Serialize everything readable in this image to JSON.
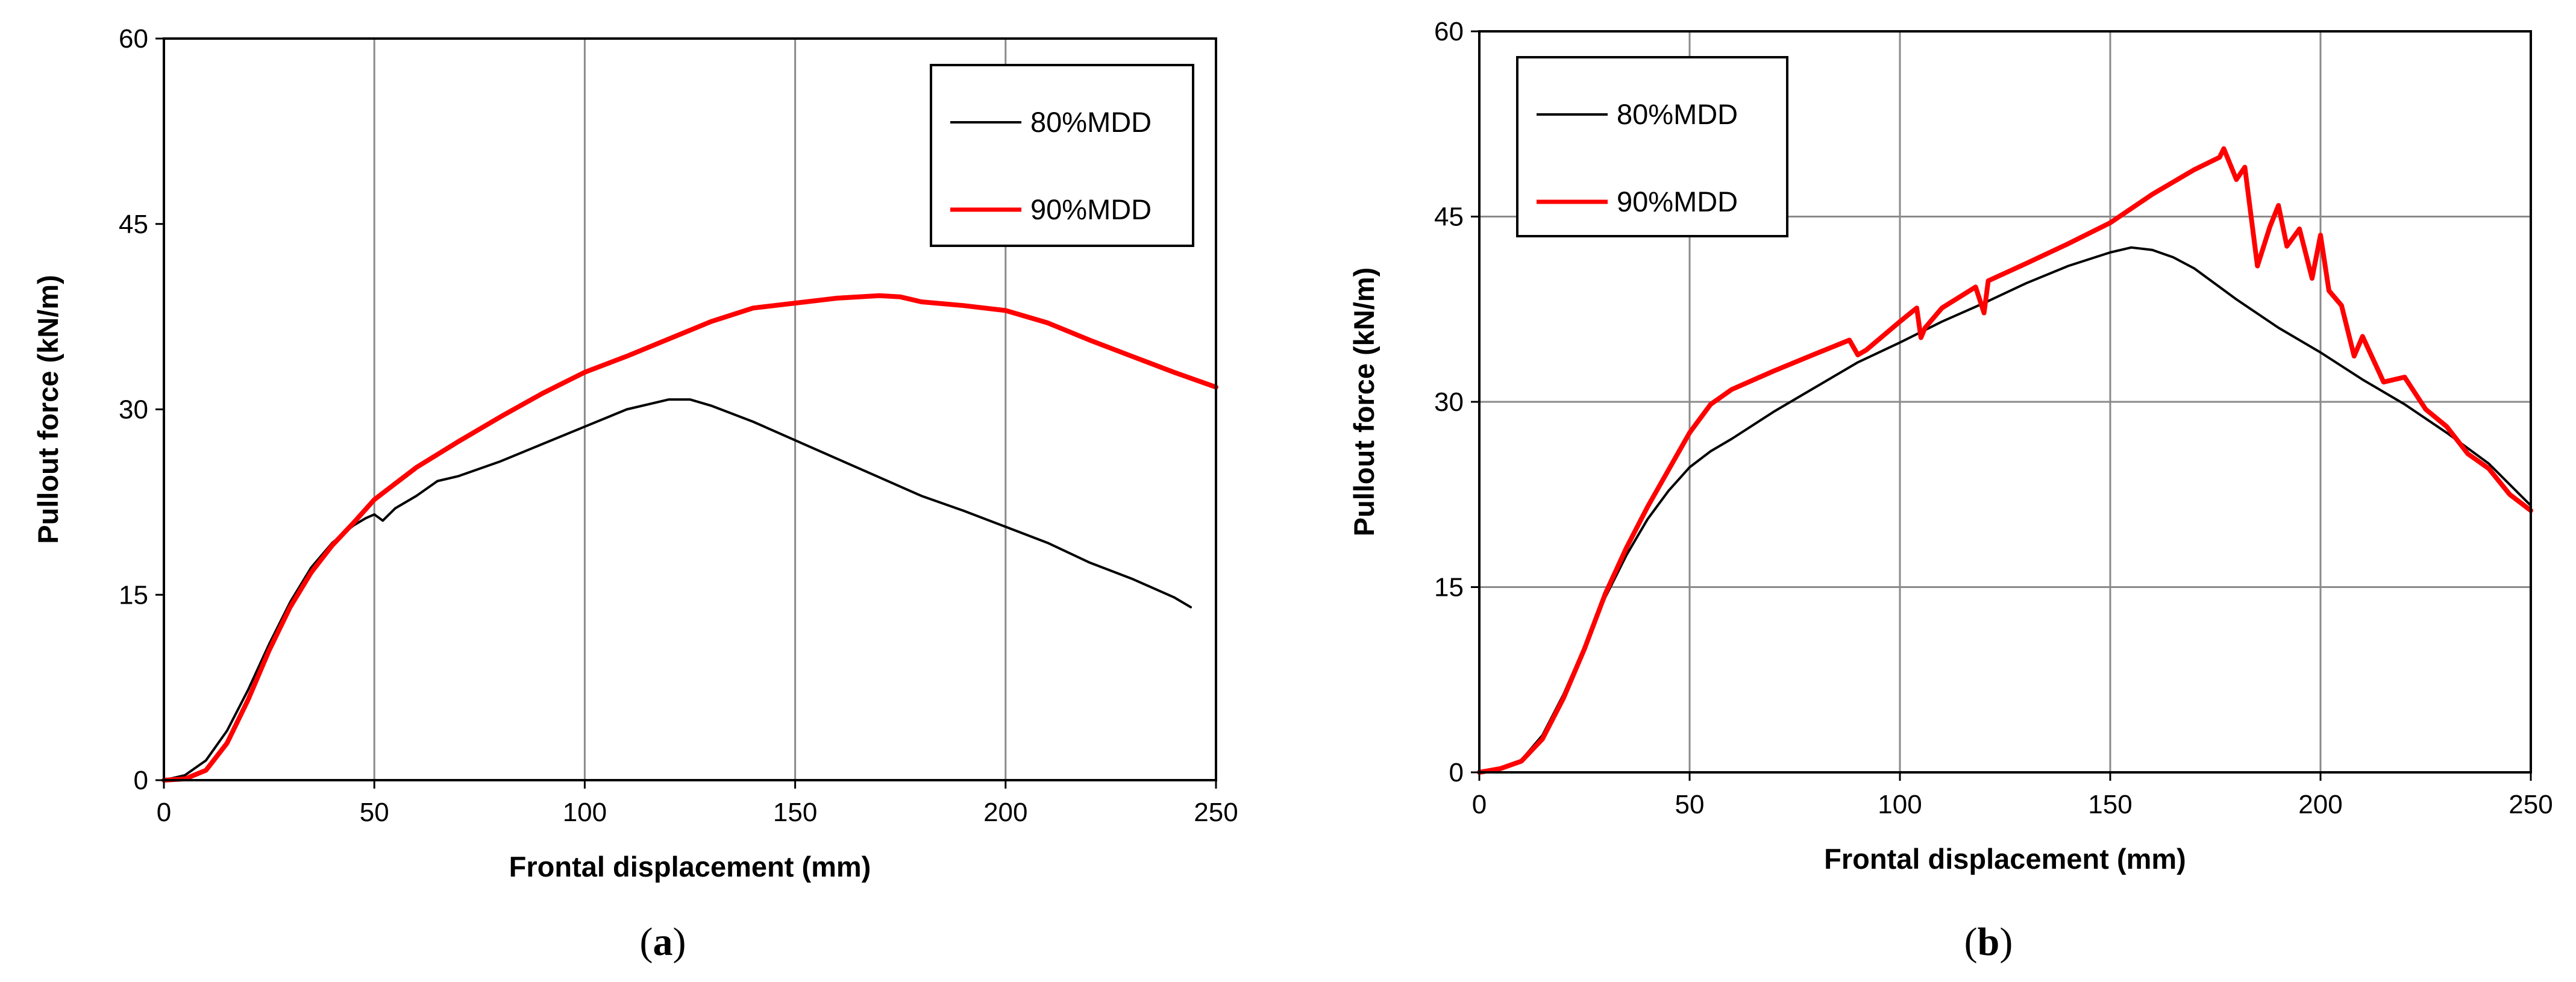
{
  "chart_data": [
    {
      "panel": "a",
      "type": "line",
      "caption": {
        "open": "(",
        "letter": "a",
        "close": ")"
      },
      "xlabel": "Frontal displacement  (mm)",
      "ylabel": "Pullout force (kN/m)",
      "xlim": [
        0,
        250
      ],
      "ylim": [
        0,
        60
      ],
      "xticks": [
        0,
        50,
        100,
        150,
        200,
        250
      ],
      "yticks": [
        0,
        15,
        30,
        45,
        60
      ],
      "grid": "vertical",
      "legend_position": "top-right",
      "series": [
        {
          "name": "80%MDD",
          "color": "#000000",
          "x": [
            0,
            5,
            10,
            15,
            20,
            25,
            30,
            35,
            40,
            45,
            48,
            50,
            52,
            55,
            60,
            65,
            70,
            75,
            80,
            90,
            100,
            110,
            120,
            125,
            130,
            140,
            150,
            160,
            170,
            180,
            190,
            200,
            210,
            220,
            230,
            240,
            244
          ],
          "y": [
            0,
            0.4,
            1.6,
            4.0,
            7.3,
            11.0,
            14.4,
            17.2,
            19.2,
            20.6,
            21.2,
            21.5,
            21.0,
            22.0,
            23.0,
            24.2,
            24.6,
            25.2,
            25.8,
            27.2,
            28.6,
            30.0,
            30.8,
            30.8,
            30.3,
            29.0,
            27.5,
            26.0,
            24.5,
            23.0,
            21.8,
            20.5,
            19.2,
            17.6,
            16.3,
            14.8,
            14.0
          ]
        },
        {
          "name": "90%MDD",
          "color": "#ff0000",
          "x": [
            0,
            5,
            10,
            15,
            20,
            25,
            30,
            35,
            40,
            45,
            50,
            55,
            60,
            70,
            80,
            90,
            100,
            110,
            120,
            130,
            140,
            150,
            160,
            170,
            175,
            180,
            190,
            200,
            210,
            220,
            230,
            240,
            250
          ],
          "y": [
            0,
            0.1,
            0.8,
            3.0,
            6.5,
            10.5,
            14.0,
            16.8,
            19.0,
            20.8,
            22.7,
            24.0,
            25.3,
            27.4,
            29.4,
            31.3,
            33.0,
            34.3,
            35.7,
            37.1,
            38.2,
            38.6,
            39.0,
            39.2,
            39.1,
            38.7,
            38.4,
            38.0,
            37.0,
            35.6,
            34.3,
            33.0,
            31.8
          ]
        }
      ]
    },
    {
      "panel": "b",
      "type": "line",
      "caption": {
        "open": "(",
        "letter": "b",
        "close": ")"
      },
      "xlabel": "Frontal displacement  (mm)",
      "ylabel": "Pullout force (kN/m)",
      "xlim": [
        0,
        250
      ],
      "ylim": [
        0,
        60
      ],
      "xticks": [
        0,
        50,
        100,
        150,
        200,
        250
      ],
      "yticks": [
        0,
        15,
        30,
        45,
        60
      ],
      "grid": "both",
      "legend_position": "top-left",
      "series": [
        {
          "name": "80%MDD",
          "color": "#000000",
          "x": [
            0,
            5,
            10,
            15,
            20,
            25,
            30,
            35,
            40,
            45,
            50,
            55,
            60,
            70,
            80,
            90,
            100,
            110,
            120,
            130,
            140,
            150,
            155,
            160,
            165,
            170,
            180,
            190,
            200,
            210,
            220,
            230,
            240,
            250
          ],
          "y": [
            0,
            0.3,
            1.0,
            3.0,
            6.3,
            10.2,
            14.2,
            17.6,
            20.5,
            22.8,
            24.7,
            26.0,
            27.0,
            29.2,
            31.2,
            33.2,
            34.8,
            36.5,
            38.0,
            39.6,
            41.0,
            42.1,
            42.5,
            42.3,
            41.7,
            40.8,
            38.3,
            36.0,
            34.0,
            31.8,
            29.8,
            27.5,
            25.0,
            21.6
          ]
        },
        {
          "name": "90%MDD",
          "color": "#ff0000",
          "x": [
            0,
            5,
            10,
            15,
            20,
            25,
            30,
            35,
            40,
            45,
            50,
            55,
            60,
            70,
            80,
            88,
            90,
            92,
            100,
            104,
            105,
            106,
            110,
            118,
            120,
            121,
            130,
            140,
            150,
            160,
            170,
            176,
            177,
            180,
            182,
            185,
            188,
            190,
            192,
            195,
            198,
            200,
            202,
            205,
            208,
            210,
            215,
            220,
            225,
            230,
            235,
            240,
            245,
            250
          ],
          "y": [
            0,
            0.3,
            0.9,
            2.7,
            6.0,
            10.0,
            14.5,
            18.2,
            21.5,
            24.5,
            27.5,
            29.8,
            31.0,
            32.5,
            33.9,
            35.0,
            33.8,
            34.2,
            36.5,
            37.6,
            35.2,
            36.0,
            37.6,
            39.3,
            37.2,
            39.8,
            41.2,
            42.8,
            44.5,
            46.8,
            48.8,
            49.8,
            50.5,
            48.0,
            49.0,
            41.0,
            44.2,
            45.9,
            42.6,
            44.0,
            40.0,
            43.5,
            39.0,
            37.8,
            33.7,
            35.3,
            31.6,
            32.0,
            29.4,
            28.0,
            25.8,
            24.6,
            22.5,
            21.2
          ]
        }
      ]
    }
  ]
}
